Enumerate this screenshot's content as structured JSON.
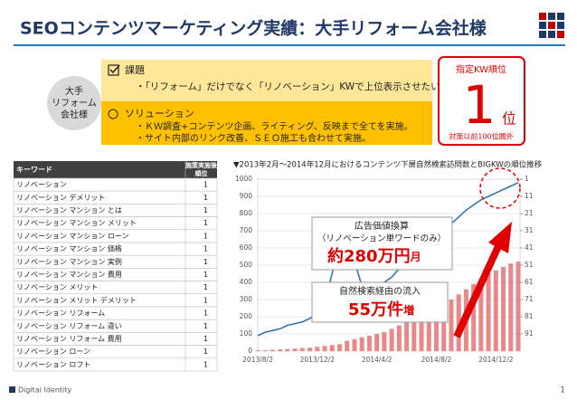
{
  "header": {
    "title": "SEOコンテンツマーケティング実績：大手リフォーム会社様"
  },
  "client": {
    "lines": [
      "大手",
      "リフォーム",
      "会社様"
    ]
  },
  "issue": {
    "heading": "課題",
    "text": "・「リフォーム」だけでなく「リノベーション」KWで上位表示させたい。"
  },
  "solution": {
    "heading": "ソリューション",
    "items": [
      "・ＫＷ調査+コンテンツ企画、ライティング、反映まで全てを実施。",
      "・サイト内部のリンク改善、ＳＥＯ施工も合わせて実施。"
    ]
  },
  "result": {
    "label": "指定KW順位",
    "rank": 1,
    "unit": "位",
    "note": "対策以前100位圏外"
  },
  "table": {
    "headers": [
      "キーワード",
      [
        "施策実施後",
        "順位"
      ]
    ],
    "rows": [
      [
        "リノベーション",
        1
      ],
      [
        "リノベーション デメリット",
        1
      ],
      [
        "リノベーション マンション とは",
        1
      ],
      [
        "リノベーション マンション メリット",
        1
      ],
      [
        "リノベーション マンション ローン",
        1
      ],
      [
        "リノベーション マンション 価格",
        1
      ],
      [
        "リノベーション マンション 実例",
        1
      ],
      [
        "リノベーション マンション 費用",
        1
      ],
      [
        "リノベーション メリット",
        1
      ],
      [
        "リノベーション メリット デメリット",
        1
      ],
      [
        "リノベーション リフォーム",
        1
      ],
      [
        "リノベーション リフォーム 違い",
        1
      ],
      [
        "リノベーション リフォーム 費用",
        1
      ],
      [
        "リノベーション ローン",
        1
      ],
      [
        "リノベーション ロフト",
        1
      ]
    ]
  },
  "chart_data": {
    "type": "combo",
    "title": "▼2013年2月～2014年12月におけるコンテンツ下層自然検索訪問数とBIGKWの順位推移",
    "categories": [
      "2013/8/2",
      null,
      null,
      null,
      null,
      null,
      null,
      null,
      "2013/12/2",
      null,
      null,
      null,
      null,
      null,
      null,
      null,
      "2014/4/2",
      null,
      null,
      null,
      null,
      null,
      null,
      null,
      "2014/8/2",
      null,
      null,
      null,
      null,
      null,
      null,
      null,
      "2014/12/2",
      null,
      null,
      null
    ],
    "series": [
      {
        "type": "bar",
        "color": "#e57373",
        "values": [
          5,
          5,
          8,
          10,
          12,
          15,
          18,
          20,
          25,
          30,
          35,
          40,
          60,
          70,
          80,
          90,
          100,
          110,
          130,
          150,
          170,
          190,
          210,
          230,
          250,
          280,
          300,
          330,
          360,
          390,
          420,
          450,
          470,
          490,
          510,
          520
        ]
      },
      {
        "type": "line",
        "color": "#2e75b6",
        "axis": "y2",
        "values": [
          92,
          90,
          89,
          88,
          86,
          85,
          84,
          82,
          79,
          71,
          56,
          31,
          25,
          49,
          63,
          67,
          65,
          61,
          58,
          53,
          49,
          45,
          41,
          39,
          36,
          31,
          27,
          23,
          19,
          16,
          13,
          11,
          9,
          7,
          5,
          3
        ]
      }
    ],
    "ylim": [
      0,
      1000
    ],
    "yticks": [
      0,
      100,
      200,
      300,
      400,
      500,
      600,
      700,
      800,
      900,
      1000
    ],
    "y2lim": [
      101,
      1
    ],
    "y2ticks": [
      1,
      11,
      21,
      31,
      41,
      51,
      61,
      71,
      81,
      91
    ],
    "grid": true
  },
  "callouts": [
    {
      "lines": [
        "広告価値換算",
        "（リノベーション単ワードのみ）"
      ],
      "big": "約280万円",
      "suffix": "月"
    },
    {
      "lines": [
        "自然検索経由の流入"
      ],
      "big": "55万件",
      "suffix": "増"
    }
  ],
  "footer": {
    "brand": "Digital Identity",
    "page": 1
  }
}
